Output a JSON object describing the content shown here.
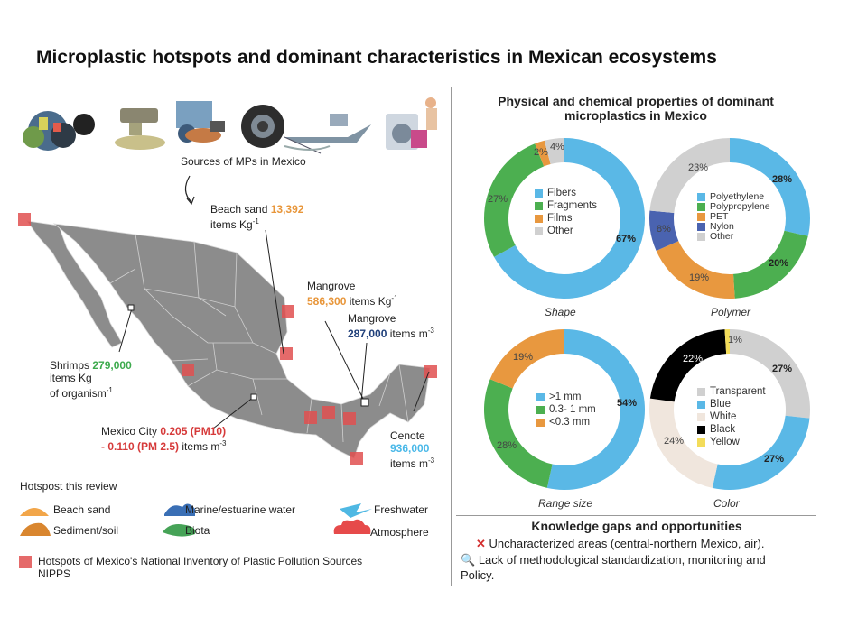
{
  "title": "Microplastic hotspots and dominant characteristics in Mexican ecosystems",
  "sources_label": "Sources of MPs in Mexico",
  "source_icons": [
    "garbage-icon",
    "wastewater-pipe-icon",
    "tourism-icon",
    "tire-icon",
    "fishing-boat-icon",
    "laundry-icon"
  ],
  "annotations": {
    "beach_sand": {
      "name": "Beach sand",
      "value": "13,392",
      "unit": "items Kg",
      "exp": "-1"
    },
    "mangrove1": {
      "name": "Mangrove",
      "value": "586,300",
      "unit": "items Kg",
      "exp": "-1"
    },
    "mangrove2": {
      "name": "Mangrove",
      "value": "287,000",
      "unit": "items m",
      "exp": "-3"
    },
    "shrimps": {
      "name": "Shrimps",
      "value": "279,000",
      "unit1": "items Kg",
      "unit2": "of organism",
      "exp": "-1"
    },
    "mexico_city": {
      "name": "Mexico City",
      "v1": "0.205 (PM10)",
      "v2": "- 0.110 (PM 2.5)",
      "unit": "items m",
      "exp": "-3"
    },
    "cenote": {
      "name": "Cenote",
      "value": "936,000",
      "unit": "items m",
      "exp": "-3"
    }
  },
  "legend_hotspots": {
    "title": "Hotspost this review",
    "items": [
      "Beach sand",
      "Marine/estuarine water",
      "Freshwater",
      "Sediment/soil",
      "Biota",
      "Atmosphere"
    ],
    "nipps_line1": "Hotspots of Mexico's National Inventory of Plastic Pollution Sources",
    "nipps_line2": "NIPPS"
  },
  "props_title_line1": "Physical and chemical properties of dominant",
  "props_title_line2": "microplastics in Mexico",
  "colors": {
    "blue": "#5ab8e6",
    "green": "#4caf50",
    "orange": "#e8983f",
    "grey": "#d0d0d0",
    "navy": "#4a63b0",
    "white": "#f0e6dd",
    "black": "#000000",
    "yellow": "#f3dc5a",
    "red": "#e05050"
  },
  "chart_data": [
    {
      "type": "pie",
      "title": "Shape",
      "labels": [
        "Fibers",
        "Fragments",
        "Films",
        "Other"
      ],
      "values": [
        67,
        27,
        2,
        4
      ],
      "value_labels": [
        "67%",
        "27%",
        "2%",
        "4%"
      ],
      "colors": [
        "#5ab8e6",
        "#4caf50",
        "#e8983f",
        "#d0d0d0"
      ]
    },
    {
      "type": "pie",
      "title": "Polymer",
      "labels": [
        "Polyethylene",
        "Polypropylene",
        "PET",
        "Nylon",
        "Other"
      ],
      "values": [
        28,
        20,
        19,
        8,
        23
      ],
      "value_labels": [
        "28%",
        "20%",
        "19%",
        "8%",
        "23%"
      ],
      "colors": [
        "#5ab8e6",
        "#4caf50",
        "#e8983f",
        "#4a63b0",
        "#d0d0d0"
      ]
    },
    {
      "type": "pie",
      "title": "Range size",
      "labels": [
        ">1 mm",
        "0.3- 1 mm",
        "<0.3 mm"
      ],
      "values": [
        54,
        28,
        19
      ],
      "value_labels": [
        "54%",
        "28%",
        "19%"
      ],
      "colors": [
        "#5ab8e6",
        "#4caf50",
        "#e8983f"
      ]
    },
    {
      "type": "pie",
      "title": "Color",
      "labels": [
        "Transparent",
        "Blue",
        "White",
        "Black",
        "Yellow"
      ],
      "values": [
        27,
        27,
        24,
        22,
        1
      ],
      "value_labels": [
        "27%",
        "27%",
        "24%",
        "22%",
        "1%"
      ],
      "colors": [
        "#d0d0d0",
        "#5ab8e6",
        "#f0e6dd",
        "#000000",
        "#f3dc5a"
      ]
    }
  ],
  "gaps": {
    "title": "Knowledge gaps and opportunities",
    "item1": "Uncharacterized areas (central-northern Mexico, air).",
    "item2_line1": "Lack of methodological standardization, monitoring and",
    "item2_line2": "Policy."
  }
}
